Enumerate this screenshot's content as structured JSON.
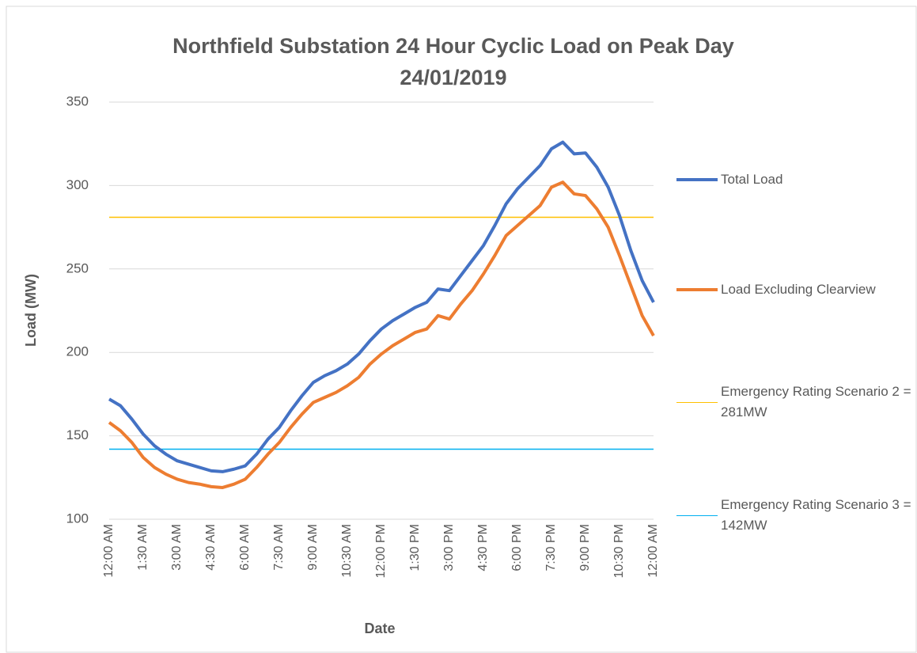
{
  "chart_data": {
    "type": "line",
    "title": "Northfield Substation 24 Hour Cyclic Load on Peak Day 24/01/2019",
    "x_label": "Date",
    "y_label": "Load (MW)",
    "categories": [
      "12:00 AM",
      null,
      null,
      "1:30 AM",
      null,
      null,
      "3:00 AM",
      null,
      null,
      "4:30 AM",
      null,
      null,
      "6:00 AM",
      null,
      null,
      "7:30 AM",
      null,
      null,
      "9:00 AM",
      null,
      null,
      "10:30 AM",
      null,
      null,
      "12:00 PM",
      null,
      null,
      "1:30 PM",
      null,
      null,
      "3:00 PM",
      null,
      null,
      "4:30 PM",
      null,
      null,
      "6:00 PM",
      null,
      null,
      "7:30 PM",
      null,
      null,
      "9:00 PM",
      null,
      null,
      "10:30 PM",
      null,
      null,
      "12:00 AM"
    ],
    "series": [
      {
        "name": "Total Load",
        "color": "#4472c4",
        "width": 4,
        "values": [
          172,
          168,
          160,
          151,
          144,
          139,
          135,
          133,
          131,
          129,
          128.5,
          130,
          132,
          139,
          148,
          155,
          165,
          174,
          182,
          186,
          189,
          193,
          199,
          207,
          214,
          219,
          223,
          227,
          230,
          238,
          237,
          246,
          255,
          264,
          276,
          289,
          298,
          305,
          312,
          322,
          326,
          319,
          319.5,
          311,
          299,
          282,
          261,
          243,
          230
        ]
      },
      {
        "name": "Load Excluding Clearview",
        "color": "#ed7d31",
        "width": 4,
        "values": [
          158,
          153,
          146,
          137,
          131,
          127,
          124,
          122,
          121,
          119.5,
          119,
          121,
          124,
          131,
          139,
          146,
          155,
          163,
          170,
          173,
          176,
          180,
          185,
          193,
          199,
          204,
          208,
          212,
          214,
          222,
          220,
          229,
          237,
          247,
          258,
          270,
          276,
          282,
          288,
          299,
          302,
          295,
          294,
          286,
          275,
          258,
          240,
          222,
          210
        ]
      },
      {
        "name": "Emergency Rating Scenario 2 = 281MW",
        "color": "#ffc000",
        "width": 1.5,
        "values": [
          281,
          281,
          281,
          281,
          281,
          281,
          281,
          281,
          281,
          281,
          281,
          281,
          281,
          281,
          281,
          281,
          281,
          281,
          281,
          281,
          281,
          281,
          281,
          281,
          281,
          281,
          281,
          281,
          281,
          281,
          281,
          281,
          281,
          281,
          281,
          281,
          281,
          281,
          281,
          281,
          281,
          281,
          281,
          281,
          281,
          281,
          281,
          281,
          281
        ]
      },
      {
        "name": "Emergency Rating Scenario 3 = 142MW",
        "color": "#00b0f0",
        "width": 1.5,
        "values": [
          142,
          142,
          142,
          142,
          142,
          142,
          142,
          142,
          142,
          142,
          142,
          142,
          142,
          142,
          142,
          142,
          142,
          142,
          142,
          142,
          142,
          142,
          142,
          142,
          142,
          142,
          142,
          142,
          142,
          142,
          142,
          142,
          142,
          142,
          142,
          142,
          142,
          142,
          142,
          142,
          142,
          142,
          142,
          142,
          142,
          142,
          142,
          142,
          142
        ]
      }
    ],
    "ylim": [
      100,
      350
    ],
    "yticks": [
      100,
      150,
      200,
      250,
      300,
      350
    ],
    "grid": true,
    "legend": "right"
  }
}
